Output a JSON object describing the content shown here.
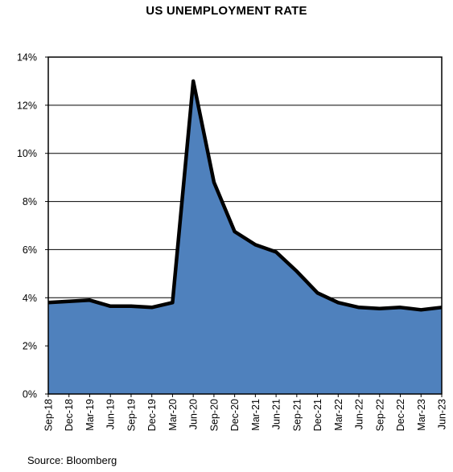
{
  "chart_data": {
    "type": "area",
    "title": "US UNEMPLOYMENT RATE",
    "xlabel": "",
    "ylabel": "",
    "x": [
      "Sep-18",
      "Dec-18",
      "Mar-19",
      "Jun-19",
      "Sep-19",
      "Dec-19",
      "Mar-20",
      "Jun-20",
      "Sep-20",
      "Dec-20",
      "Mar-21",
      "Jun-21",
      "Sep-21",
      "Dec-21",
      "Mar-22",
      "Jun-22",
      "Sep-22",
      "Dec-22",
      "Mar-23",
      "Jun-23"
    ],
    "values": [
      3.8,
      3.85,
      3.9,
      3.65,
      3.65,
      3.6,
      3.8,
      13.0,
      8.8,
      6.75,
      6.2,
      5.9,
      5.1,
      4.2,
      3.8,
      3.6,
      3.55,
      3.6,
      3.5,
      3.6
    ],
    "ylim": [
      0,
      14
    ],
    "yticks": [
      0,
      2,
      4,
      6,
      8,
      10,
      12,
      14
    ],
    "ytick_format": "{v}%",
    "grid": true,
    "fill_color": "#4f81bd",
    "line_color": "#000000",
    "source": "Source: Bloomberg"
  }
}
